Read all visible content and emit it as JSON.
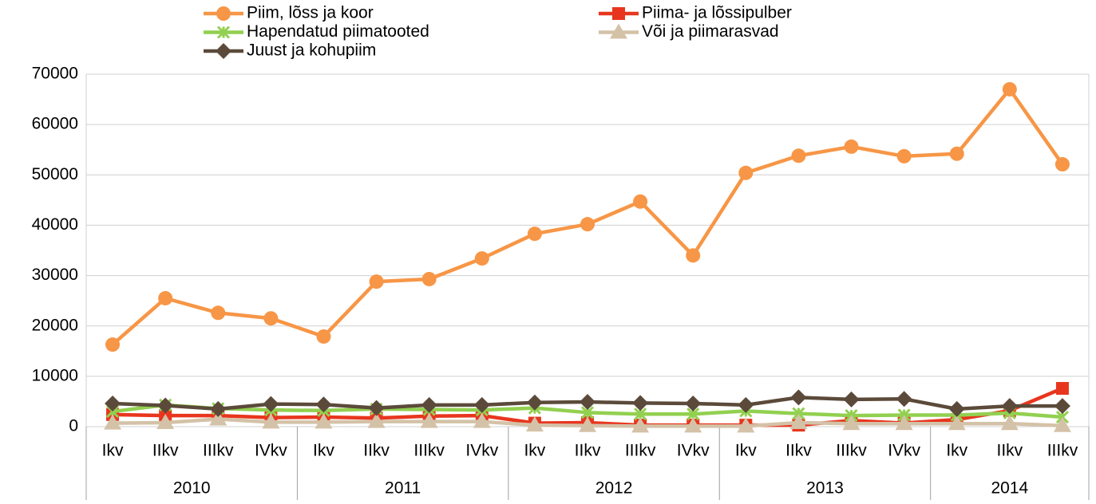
{
  "chart_data": {
    "type": "line",
    "groups": [
      {
        "label": "2010",
        "categories": [
          "Ikv",
          "IIkv",
          "IIIkv",
          "IVkv"
        ]
      },
      {
        "label": "2011",
        "categories": [
          "Ikv",
          "IIkv",
          "IIIkv",
          "IVkv"
        ]
      },
      {
        "label": "2012",
        "categories": [
          "Ikv",
          "IIkv",
          "IIIkv",
          "IVkv"
        ]
      },
      {
        "label": "2013",
        "categories": [
          "Ikv",
          "IIkv",
          "IIIkv",
          "IVkv"
        ]
      },
      {
        "label": "2014",
        "categories": [
          "Ikv",
          "IIkv",
          "IIIkv"
        ]
      }
    ],
    "series": [
      {
        "name": "Piim, lõss ja koor",
        "color": "#f79646",
        "marker": "circle",
        "values": [
          16300,
          25500,
          22600,
          21500,
          17900,
          28800,
          29300,
          33400,
          38300,
          40200,
          44700,
          34000,
          50400,
          53800,
          55600,
          53700,
          54200,
          67000,
          52100
        ]
      },
      {
        "name": "Piima- ja lõssipulber",
        "color": "#e8361e",
        "marker": "square",
        "values": [
          2400,
          2200,
          2200,
          1800,
          1900,
          1700,
          2100,
          2200,
          700,
          800,
          300,
          300,
          300,
          300,
          1200,
          700,
          1400,
          3200,
          7600
        ]
      },
      {
        "name": "Hapendatud piimatooted",
        "color": "#92d050",
        "marker": "asterisk",
        "values": [
          3000,
          4300,
          3600,
          3300,
          3200,
          3500,
          3400,
          3300,
          3700,
          2800,
          2500,
          2500,
          3100,
          2600,
          2200,
          2300,
          2300,
          2700,
          1900
        ]
      },
      {
        "name": "Või ja piimarasvad",
        "color": "#d4c2a8",
        "marker": "triangle",
        "values": [
          700,
          800,
          1500,
          900,
          900,
          1000,
          1000,
          1000,
          300,
          200,
          100,
          100,
          100,
          800,
          600,
          600,
          600,
          600,
          200
        ]
      },
      {
        "name": "Juust ja kohupiim",
        "color": "#5b4a3a",
        "marker": "diamond",
        "values": [
          4600,
          4200,
          3500,
          4500,
          4400,
          3700,
          4300,
          4300,
          4800,
          4900,
          4700,
          4600,
          4300,
          5800,
          5400,
          5500,
          3500,
          4100,
          4100
        ]
      }
    ],
    "ylim": [
      0,
      70000
    ],
    "yticks": [
      0,
      10000,
      20000,
      30000,
      40000,
      50000,
      60000,
      70000
    ],
    "grid": true,
    "legend": "top"
  }
}
